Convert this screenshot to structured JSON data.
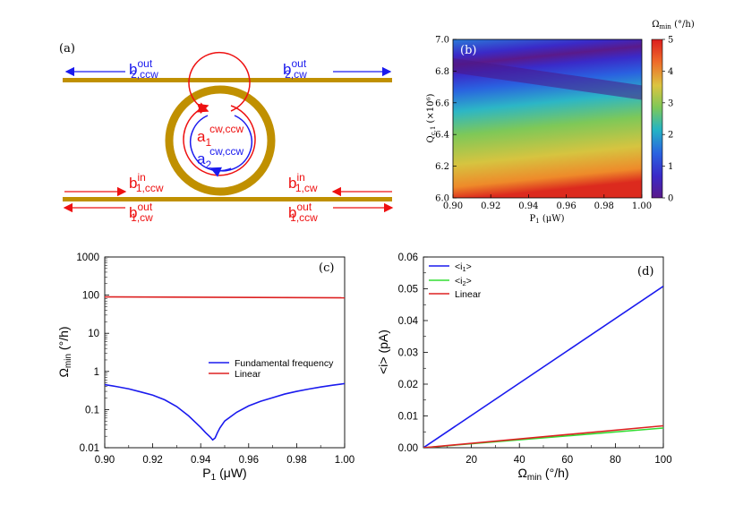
{
  "panel_a": {
    "label": "(a)",
    "b2ccw_out": {
      "base": "b",
      "sup": "out",
      "sub": "2,ccw"
    },
    "b2cw_out": {
      "base": "b",
      "sup": "out",
      "sub": "2,cw"
    },
    "a1": {
      "base": "a",
      "sub": "1",
      "sup": "cw,ccw"
    },
    "a2": {
      "base": "a",
      "sub": "2",
      "sup": "cw,ccw"
    },
    "b1ccw_in": {
      "base": "b",
      "sup": "in",
      "sub": "1,ccw"
    },
    "b1cw_in": {
      "base": "b",
      "sup": "in",
      "sub": "1,cw"
    },
    "b1cw_out": {
      "base": "b",
      "sup": "out",
      "sub": "1,cw"
    },
    "b1ccw_out": {
      "base": "b",
      "sup": "out",
      "sub": "1,ccw"
    },
    "colors": {
      "waveguide": "#c09000",
      "red": "#ee1111",
      "blue": "#1a1aee"
    }
  },
  "chart_data": [
    {
      "id": "b",
      "type": "heatmap",
      "panel_label": "(b)",
      "xlabel": {
        "base": "P",
        "sub": "1",
        "tail": " (μW)"
      },
      "ylabel": {
        "base": "Q",
        "sub": "c,1",
        "tail": " (×10⁶)"
      },
      "xlim": [
        0.9,
        1.0
      ],
      "ylim": [
        6.0,
        7.0
      ],
      "xticks": [
        "0.90",
        "0.92",
        "0.94",
        "0.96",
        "0.98",
        "1.00"
      ],
      "yticks": [
        "6.0",
        "6.2",
        "6.4",
        "6.6",
        "6.8",
        "7.0"
      ],
      "colorbar": {
        "title": {
          "base": "Ω",
          "sub": "min",
          "tail": " (°/h)"
        },
        "range": [
          0,
          5
        ],
        "ticks": [
          "0",
          "1",
          "2",
          "3",
          "4",
          "5"
        ],
        "colors": [
          "#5a1a8a",
          "#3a2ac8",
          "#2a62e0",
          "#24b4c4",
          "#7ec858",
          "#dcc440",
          "#ee6a2a",
          "#dc1e1e"
        ]
      },
      "min_valley": {
        "x": [
          0.9,
          1.0
        ],
        "y": [
          6.84,
          6.66
        ]
      }
    },
    {
      "id": "c",
      "type": "line",
      "panel_label": "(c)",
      "xlabel": {
        "base": "P",
        "sub": "1",
        "tail": " (μW)"
      },
      "ylabel": {
        "base": "Ω",
        "sub": "min",
        "tail": " (°/h)"
      },
      "xlim": [
        0.9,
        1.0
      ],
      "ylim": [
        0.01,
        1000
      ],
      "yscale": "log",
      "xticks": [
        "0.90",
        "0.92",
        "0.94",
        "0.96",
        "0.98",
        "1.00"
      ],
      "yticks": [
        "0.01",
        "0.1",
        "1",
        "10",
        "100",
        "1000"
      ],
      "legend": [
        "Fundamental frequency",
        "Linear"
      ],
      "series": [
        {
          "name": "Fundamental frequency",
          "color": "#1a1aee",
          "x": [
            0.9,
            0.905,
            0.91,
            0.915,
            0.92,
            0.925,
            0.93,
            0.935,
            0.938,
            0.94,
            0.942,
            0.944,
            0.945,
            0.946,
            0.947,
            0.948,
            0.95,
            0.955,
            0.96,
            0.965,
            0.97,
            0.975,
            0.98,
            0.985,
            0.99,
            0.995,
            1.0
          ],
          "y": [
            0.45,
            0.4,
            0.35,
            0.29,
            0.24,
            0.18,
            0.12,
            0.068,
            0.045,
            0.034,
            0.025,
            0.019,
            0.016,
            0.018,
            0.025,
            0.033,
            0.05,
            0.085,
            0.125,
            0.165,
            0.205,
            0.255,
            0.3,
            0.345,
            0.39,
            0.435,
            0.48
          ]
        },
        {
          "name": "Linear",
          "color": "#dd2222",
          "x": [
            0.9,
            1.0
          ],
          "y": [
            90,
            85
          ]
        }
      ]
    },
    {
      "id": "d",
      "type": "line",
      "panel_label": "(d)",
      "xlabel": {
        "base": "Ω",
        "sub": "min",
        "tail": " (°/h)"
      },
      "ylabel": {
        "base": "<i> (pA)",
        "sub": "",
        "tail": ""
      },
      "xlim": [
        0,
        100
      ],
      "ylim": [
        0,
        0.06
      ],
      "xticks": [
        "20",
        "40",
        "60",
        "80",
        "100"
      ],
      "yticks": [
        "0.00",
        "0.01",
        "0.02",
        "0.03",
        "0.04",
        "0.05",
        "0.06"
      ],
      "legend": [
        {
          "base": "<i",
          "sub": "1",
          "tail": ">"
        },
        {
          "base": "<i",
          "sub": "2",
          "tail": ">"
        },
        {
          "base": "Linear",
          "sub": "",
          "tail": ""
        }
      ],
      "series": [
        {
          "name": "<i1>",
          "color": "#1a1aee",
          "x": [
            0,
            100
          ],
          "y": [
            0,
            0.0508
          ]
        },
        {
          "name": "<i2>",
          "color": "#33dd33",
          "x": [
            0,
            100
          ],
          "y": [
            0,
            0.0062
          ]
        },
        {
          "name": "Linear",
          "color": "#dd2222",
          "x": [
            0,
            100
          ],
          "y": [
            0,
            0.0069
          ]
        }
      ]
    }
  ]
}
